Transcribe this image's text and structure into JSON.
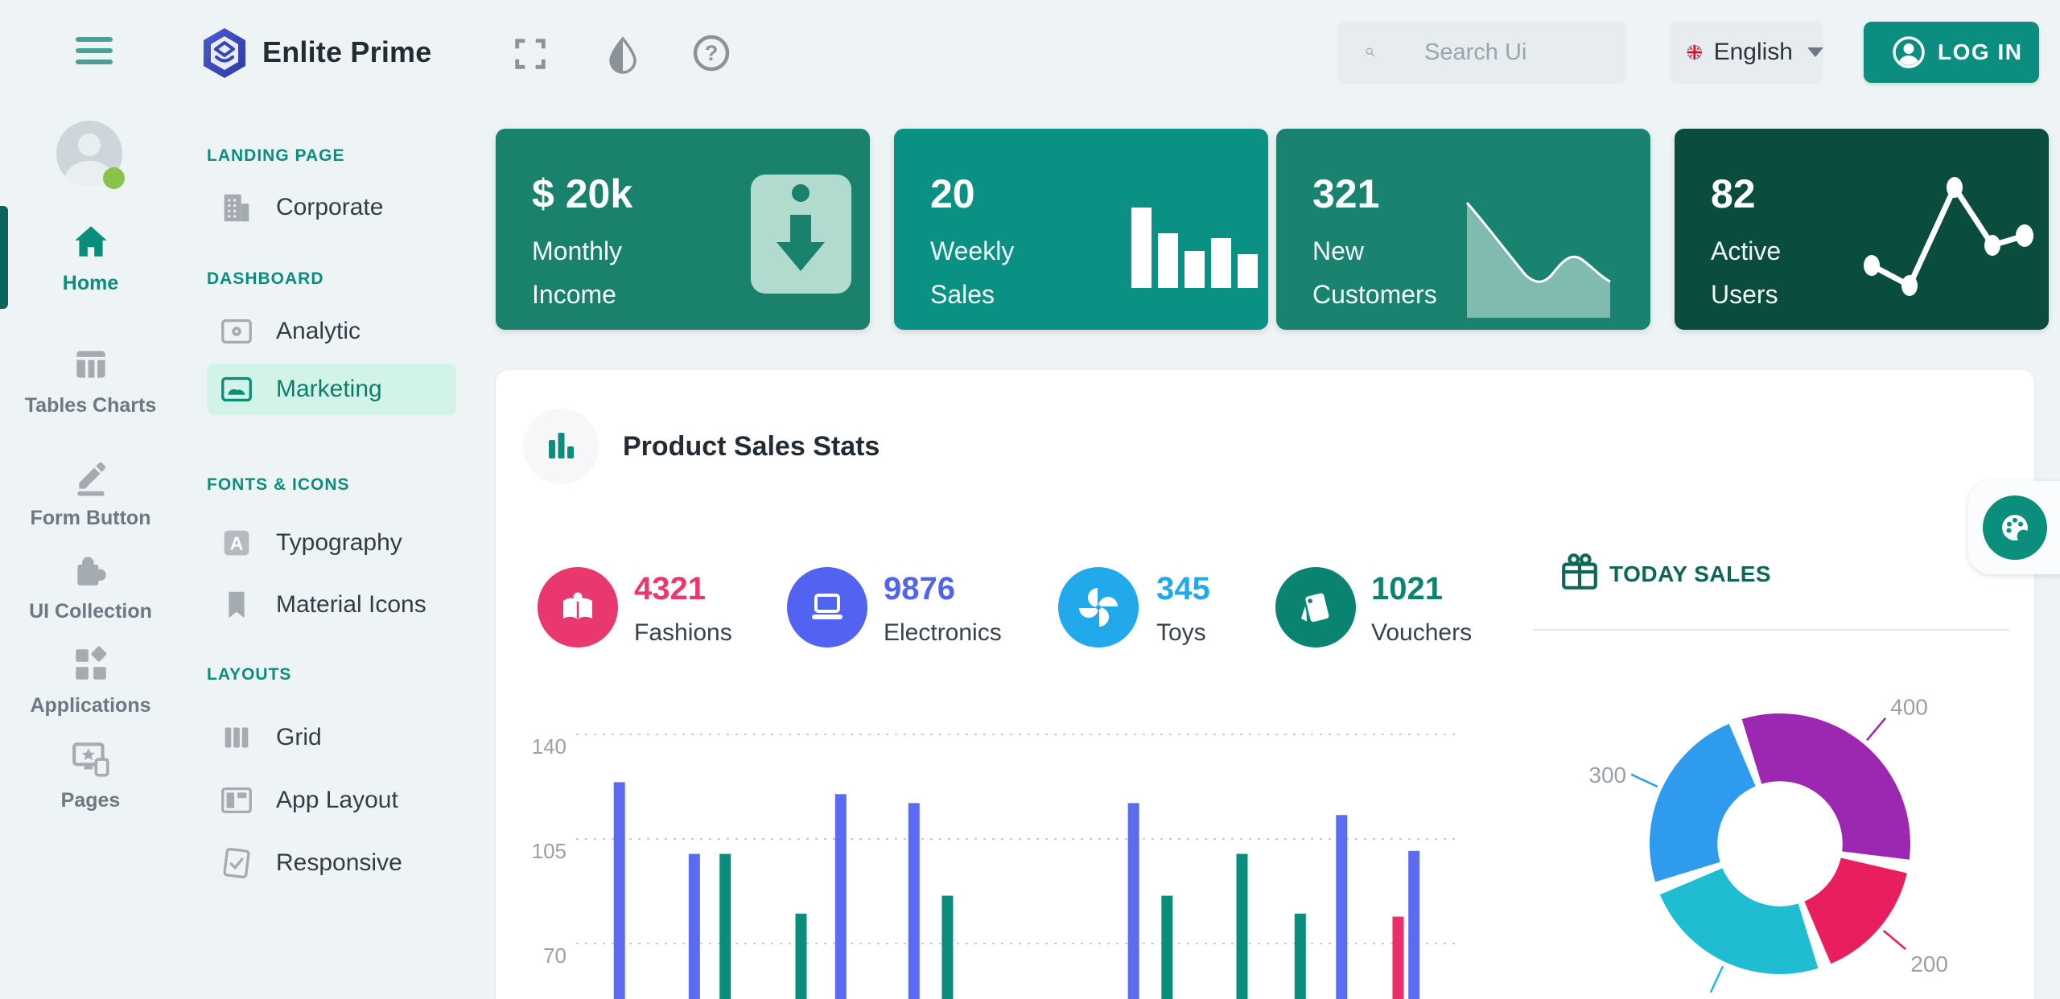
{
  "header": {
    "app_title": "Enlite Prime",
    "search": {
      "placeholder": "Search Ui"
    },
    "language": {
      "selected": "English"
    },
    "login_label": "LOG IN",
    "icons": [
      "menu-icon",
      "fullscreen-icon",
      "contrast-icon",
      "help-icon",
      "search-icon",
      "flag-uk-icon",
      "caret-down-icon",
      "account-icon"
    ]
  },
  "rail": {
    "avatar_status": "online",
    "items": [
      {
        "label": "Home",
        "icon": "home-icon",
        "active": true
      },
      {
        "label": "Tables Charts",
        "icon": "table-icon",
        "active": false
      },
      {
        "label": "Form Button",
        "icon": "pencil-icon",
        "active": false
      },
      {
        "label": "UI Collection",
        "icon": "puzzle-icon",
        "active": false
      },
      {
        "label": "Applications",
        "icon": "apps-icon",
        "active": false
      },
      {
        "label": "Pages",
        "icon": "devices-star-icon",
        "active": false
      }
    ]
  },
  "menu": {
    "sections": [
      {
        "title": "LANDING PAGE",
        "items": [
          {
            "label": "Corporate",
            "icon": "building-icon",
            "active": false
          }
        ]
      },
      {
        "title": "DASHBOARD",
        "items": [
          {
            "label": "Analytic",
            "icon": "analytics-icon",
            "active": false
          },
          {
            "label": "Marketing",
            "icon": "image-icon",
            "active": true
          }
        ]
      },
      {
        "title": "FONTS & ICONS",
        "items": [
          {
            "label": "Typography",
            "icon": "font-icon",
            "active": false
          },
          {
            "label": "Material Icons",
            "icon": "bookmark-icon",
            "active": false
          }
        ]
      },
      {
        "title": "LAYOUTS",
        "items": [
          {
            "label": "Grid",
            "icon": "columns-icon",
            "active": false
          },
          {
            "label": "App Layout",
            "icon": "layout-icon",
            "active": false
          },
          {
            "label": "Responsive",
            "icon": "responsive-icon",
            "active": false
          }
        ]
      }
    ]
  },
  "summary_cards": [
    {
      "value": "$ 20k",
      "label_lines": [
        "Monthly",
        "Income"
      ],
      "icon": "download-tag-icon",
      "color": "#19816c"
    },
    {
      "value": "20",
      "label_lines": [
        "Weekly",
        "Sales"
      ],
      "icon": "mini-bar-chart",
      "color": "#0b9183"
    },
    {
      "value": "321",
      "label_lines": [
        "New",
        "Customers"
      ],
      "icon": "mini-area-chart",
      "color": "#1a8370"
    },
    {
      "value": "82",
      "label_lines": [
        "Active",
        "Users"
      ],
      "icon": "mini-line-chart",
      "color": "#0a4c3d"
    }
  ],
  "panel": {
    "title": "Product Sales Stats",
    "title_icon": "bar-chart-icon",
    "product_stats": [
      {
        "value": "4321",
        "label": "Fashions",
        "color": "#e8386e",
        "icon": "library-icon"
      },
      {
        "value": "9876",
        "label": "Electronics",
        "color": "#5363f1",
        "icon": "laptop-icon"
      },
      {
        "value": "345",
        "label": "Toys",
        "color": "#22a9ec",
        "icon": "pinwheel-icon"
      },
      {
        "value": "1021",
        "label": "Vouchers",
        "color": "#0a8471",
        "icon": "cards-icon"
      }
    ],
    "today_sales": {
      "title": "TODAY SALES",
      "icon": "gift-icon"
    }
  },
  "floating": {
    "icon": "palette-icon"
  },
  "chart_data": [
    {
      "id": "product-sales-bars",
      "type": "bar",
      "title": "Product Sales Stats",
      "ylabel": "",
      "yticks": [
        140,
        105,
        70
      ],
      "grid": "horizontal-dashed",
      "legend_position": "none",
      "note": "bar bases cropped by viewport bottom edge",
      "series_colors": {
        "blue": "#5b6cf3",
        "teal": "#0a8e7b",
        "pink": "#e8316b"
      },
      "bars": [
        {
          "pos": 0.049,
          "series": "blue",
          "value": 124
        },
        {
          "pos": 0.134,
          "series": "blue",
          "value": 100
        },
        {
          "pos": 0.169,
          "series": "teal",
          "value": 100
        },
        {
          "pos": 0.255,
          "series": "teal",
          "value": 80
        },
        {
          "pos": 0.3,
          "series": "blue",
          "value": 120
        },
        {
          "pos": 0.383,
          "series": "blue",
          "value": 117
        },
        {
          "pos": 0.421,
          "series": "teal",
          "value": 86
        },
        {
          "pos": 0.632,
          "series": "blue",
          "value": 117
        },
        {
          "pos": 0.67,
          "series": "teal",
          "value": 86
        },
        {
          "pos": 0.755,
          "series": "teal",
          "value": 100
        },
        {
          "pos": 0.821,
          "series": "teal",
          "value": 80
        },
        {
          "pos": 0.868,
          "series": "blue",
          "value": 113
        },
        {
          "pos": 0.932,
          "series": "pink",
          "value": 79
        },
        {
          "pos": 0.95,
          "series": "blue",
          "value": 101
        }
      ]
    },
    {
      "id": "today-sales-donut",
      "type": "pie",
      "title": "TODAY SALES",
      "values": [
        400,
        200,
        300,
        300
      ],
      "labels": [
        "400",
        "200",
        "300",
        "300"
      ],
      "colors": [
        "#9c27b0",
        "#e91e5f",
        "#1fbcd2",
        "#2e9bef"
      ],
      "start_angle_deg": -110,
      "inner_radius_ratio": 0.48,
      "label_color": "#9aa1a6"
    }
  ]
}
